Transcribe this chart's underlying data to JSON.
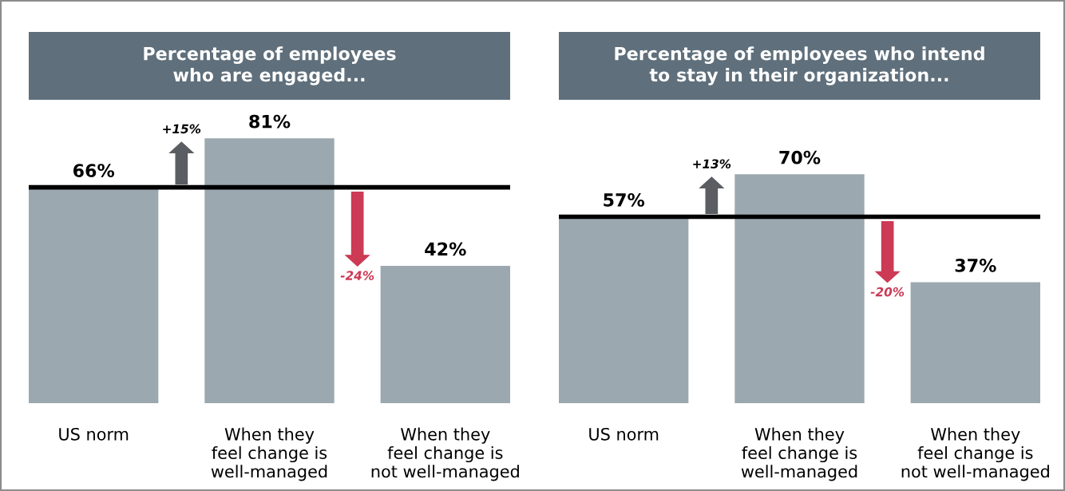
{
  "chart_data": [
    {
      "type": "bar",
      "title": "Percentage of employees\nwho are engaged...",
      "categories": [
        "US norm",
        "When they\nfeel change is\nwell-managed",
        "When they\nfeel change is\nnot well-managed"
      ],
      "values": [
        66,
        81,
        42
      ],
      "value_labels": [
        "66%",
        "81%",
        "42%"
      ],
      "color": "#9ca8b0",
      "ref_lines": [
        {
          "axis": "y",
          "value": 66,
          "color": "#000000"
        }
      ],
      "annotations": [
        "+15%",
        "-24%"
      ]
    },
    {
      "type": "bar",
      "title": "Percentage of employees who intend\nto stay in their organization...",
      "categories": [
        "US norm",
        "When they\nfeel change is\nwell-managed",
        "When they\nfeel change is\nnot well-managed"
      ],
      "values": [
        57,
        70,
        37
      ],
      "value_labels": [
        "57%",
        "70%",
        "37%"
      ],
      "color": "#9ca8b0",
      "ref_lines": [
        {
          "axis": "y",
          "value": 57,
          "color": "#000000"
        }
      ],
      "annotations": [
        "+13%",
        "-20%"
      ]
    }
  ]
}
